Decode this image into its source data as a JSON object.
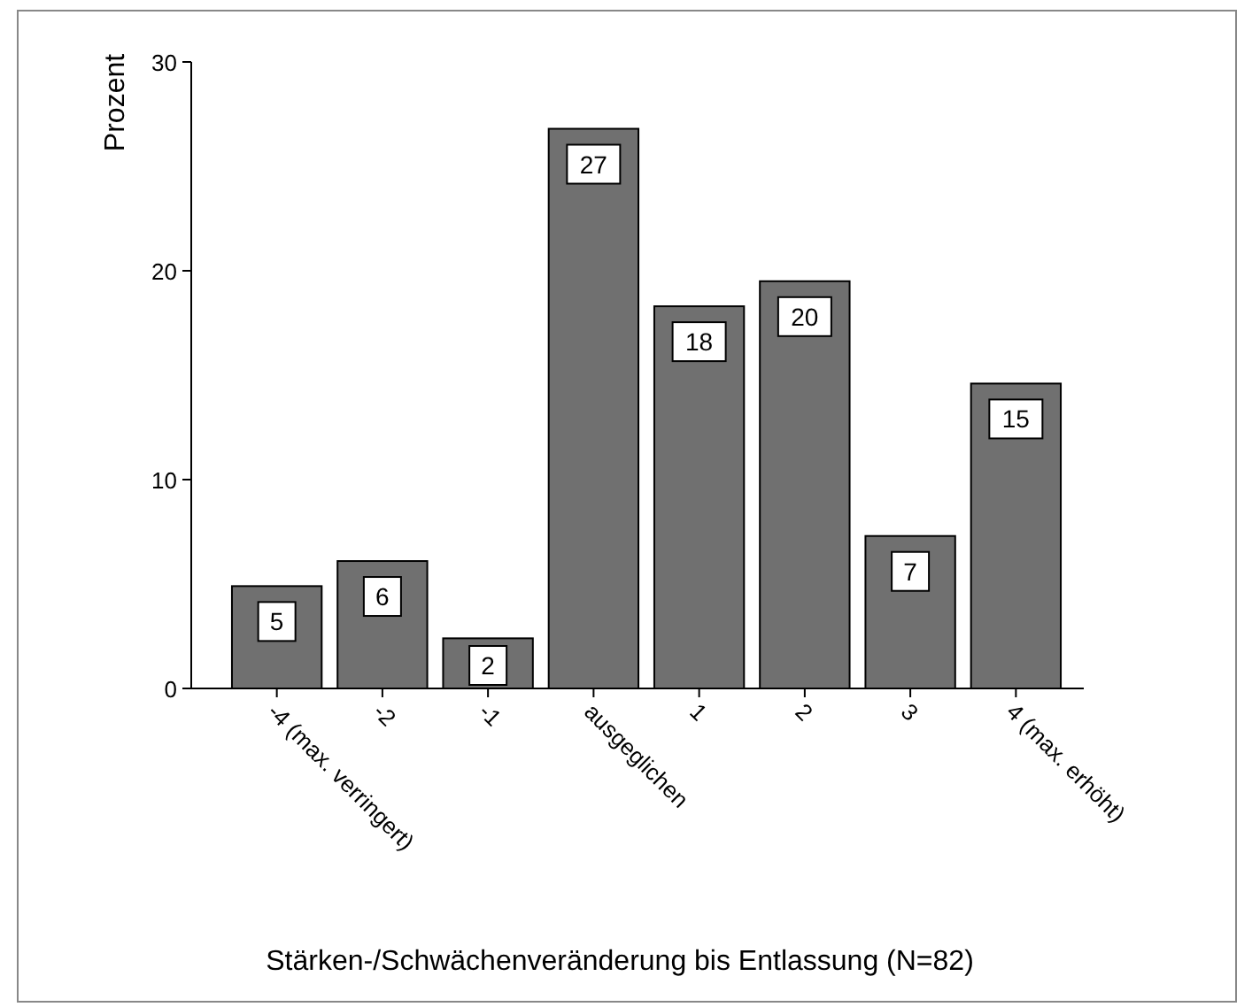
{
  "chart_data": {
    "type": "bar",
    "xlabel": "Stärken-/Schwächenveränderung bis Entlassung (N=82)",
    "ylabel": "Prozent",
    "categories": [
      "-4 (max. verringert)",
      "-2",
      "-1",
      "ausgeglichen",
      "1",
      "2",
      "3",
      "4 (max. erhöht)"
    ],
    "values": [
      4.9,
      6.1,
      2.4,
      26.8,
      18.3,
      19.5,
      7.3,
      14.6
    ],
    "value_labels": [
      "5",
      "6",
      "2",
      "27",
      "18",
      "20",
      "7",
      "15"
    ],
    "color": "#707070",
    "ylim": [
      0,
      30
    ],
    "yticks": [
      0,
      10,
      20,
      30
    ]
  }
}
